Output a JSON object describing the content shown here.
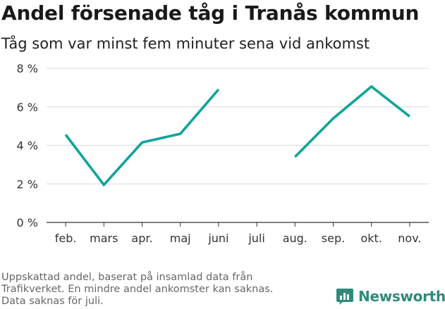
{
  "title": "Andel försenade tåg i Tranås kommun",
  "subtitle": "Tåg som var minst fem minuter sena vid ankomst",
  "footnote": {
    "line1": "Uppskattad andel, baserat på insamlad data från",
    "line2": "Trafikverket. En mindre andel ankomster kan saknas.",
    "line3": "Data saknas för juli."
  },
  "logo": {
    "text": "Newsworthy",
    "icon": "newsworthy-chart-icon"
  },
  "colors": {
    "line": "#12a39a",
    "grid": "#d9d9d9",
    "axis": "#333333",
    "brand": "#2e8b7a"
  },
  "chart_data": {
    "type": "line",
    "categories": [
      "feb.",
      "mars",
      "apr.",
      "maj",
      "juni",
      "juli",
      "aug.",
      "sep.",
      "okt.",
      "nov."
    ],
    "series": [
      {
        "values": [
          4.55,
          1.95,
          4.15,
          4.6,
          6.9,
          null,
          3.4,
          5.4,
          7.05,
          5.5
        ]
      }
    ],
    "ylim": [
      0,
      8
    ],
    "yticks": [
      0,
      2,
      4,
      6,
      8
    ],
    "ytick_labels": [
      "0 %",
      "2 %",
      "4 %",
      "6 %",
      "8 %"
    ],
    "grid": true,
    "legend": "none"
  }
}
